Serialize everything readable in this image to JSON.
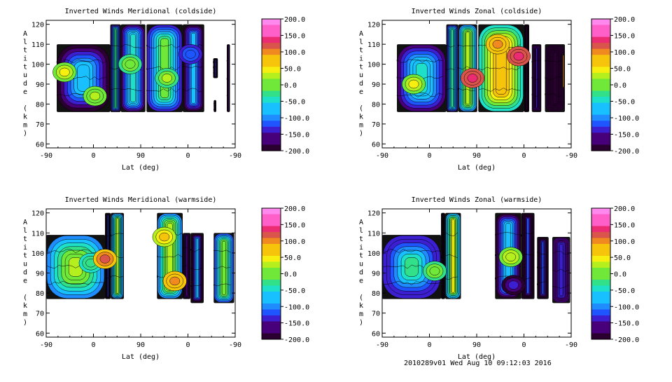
{
  "footer": "2010289v01 Wed Aug 10 09:12:03 2016",
  "colors": {
    "background": "#ffffff",
    "axis": "#000000",
    "palette": [
      "#2a0030",
      "#48007a",
      "#3b1fd0",
      "#1f55ff",
      "#1f8cff",
      "#19c0ff",
      "#1ee0c8",
      "#33e08a",
      "#6fe83a",
      "#b5ef1e",
      "#f6ef0f",
      "#f7c40c",
      "#f08a20",
      "#d9544a",
      "#ec2c72",
      "#ff5fc8",
      "#ff88ee"
    ]
  },
  "chart_data": [
    {
      "type": "heatmap",
      "title": "Inverted Winds Meridional (coldside)",
      "xlabel": "Lat (deg)",
      "ylabel": "Altitude (km)",
      "xticks": [
        "-90",
        "0",
        "90",
        "0",
        "-90"
      ],
      "yticks": [
        "60",
        "70",
        "80",
        "90",
        "100",
        "110",
        "120"
      ],
      "ylim": [
        58,
        122
      ],
      "colorbar": {
        "min": -200,
        "max": 200,
        "ticks": [
          "200.0",
          "150.0",
          "100.0",
          "50.0",
          "0.0",
          "-50.0",
          "-100.0",
          "-150.0",
          "-200.0"
        ]
      },
      "blocks": [
        {
          "x": [
            -70,
            32
          ],
          "y": [
            76,
            110
          ],
          "base": -60
        },
        {
          "x": [
            32,
            52
          ],
          "y": [
            76,
            120
          ],
          "base": -30
        },
        {
          "x": [
            52,
            99
          ],
          "y": [
            76,
            120
          ],
          "base": -40
        },
        {
          "x": [
            101,
            170
          ],
          "y": [
            76,
            120
          ],
          "base": -10
        },
        {
          "x": [
            170,
            211
          ],
          "y": [
            76,
            120
          ],
          "base": -70
        },
        {
          "x": [
            228,
            237
          ],
          "y": [
            93,
            103
          ],
          "base": -110
        },
        {
          "x": [
            229,
            234
          ],
          "y": [
            76,
            82
          ],
          "base": -170
        },
        {
          "x": [
            254,
            260
          ],
          "y": [
            76,
            110
          ],
          "base": -150
        }
      ],
      "features": [
        {
          "x": -55,
          "y": 96,
          "value": 40
        },
        {
          "x": 3,
          "y": 84,
          "value": 25
        },
        {
          "x": 70,
          "y": 100,
          "value": 10
        },
        {
          "x": 140,
          "y": 93,
          "value": 15
        },
        {
          "x": 185,
          "y": 105,
          "value": -110
        }
      ]
    },
    {
      "type": "heatmap",
      "title": "Inverted Winds Zonal (coldside)",
      "xlabel": "Lat (deg)",
      "ylabel": "Altitude (km)",
      "xticks": [
        "-90",
        "0",
        "90",
        "0",
        "-90"
      ],
      "yticks": [
        "60",
        "70",
        "80",
        "90",
        "100",
        "110",
        "120"
      ],
      "ylim": [
        58,
        122
      ],
      "colorbar": {
        "min": -200,
        "max": 200,
        "ticks": [
          "200.0",
          "150.0",
          "100.0",
          "50.0",
          "0.0",
          "-50.0",
          "-100.0",
          "-150.0",
          "-200.0"
        ]
      },
      "blocks": [
        {
          "x": [
            -62,
            32
          ],
          "y": [
            76,
            110
          ],
          "base": -40
        },
        {
          "x": [
            32,
            55
          ],
          "y": [
            76,
            120
          ],
          "base": -20
        },
        {
          "x": [
            55,
            91
          ],
          "y": [
            76,
            120
          ],
          "base": 30
        },
        {
          "x": [
            93,
            180
          ],
          "y": [
            76,
            120
          ],
          "base": 80
        },
        {
          "x": [
            180,
            190
          ],
          "y": [
            76,
            120
          ],
          "base": -185
        },
        {
          "x": [
            195,
            213
          ],
          "y": [
            76,
            110
          ],
          "base": -150
        },
        {
          "x": [
            220,
            258
          ],
          "y": [
            76,
            110
          ],
          "base": -180
        },
        {
          "x": [
            252,
            258
          ],
          "y": [
            88,
            105
          ],
          "base": 170
        }
      ],
      "features": [
        {
          "x": -30,
          "y": 90,
          "value": 40
        },
        {
          "x": 82,
          "y": 93,
          "value": 140
        },
        {
          "x": 170,
          "y": 104,
          "value": 140
        },
        {
          "x": 130,
          "y": 110,
          "value": 90
        }
      ]
    },
    {
      "type": "heatmap",
      "title": "Inverted Winds Meridional (warmside)",
      "xlabel": "Lat (deg)",
      "ylabel": "Altitude (km)",
      "xticks": [
        "-90",
        "0",
        "90",
        "0",
        "-90"
      ],
      "yticks": [
        "60",
        "70",
        "80",
        "90",
        "100",
        "110",
        "120"
      ],
      "ylim": [
        58,
        122
      ],
      "colorbar": {
        "min": -200,
        "max": 200,
        "ticks": [
          "200.0",
          "150.0",
          "100.0",
          "50.0",
          "0.0",
          "-50.0",
          "-100.0",
          "-150.0",
          "-200.0"
        ]
      },
      "blocks": [
        {
          "x": [
            -90,
            22
          ],
          "y": [
            77,
            109
          ],
          "base": 30
        },
        {
          "x": [
            22,
            33
          ],
          "y": [
            77,
            120
          ],
          "base": -100
        },
        {
          "x": [
            33,
            58
          ],
          "y": [
            77,
            120
          ],
          "base": 20
        },
        {
          "x": [
            121,
            170
          ],
          "y": [
            77,
            120
          ],
          "base": 30
        },
        {
          "x": [
            170,
            185
          ],
          "y": [
            77,
            110
          ],
          "base": -150
        },
        {
          "x": [
            185,
            210
          ],
          "y": [
            75,
            110
          ],
          "base": -80
        },
        {
          "x": [
            229,
            268
          ],
          "y": [
            75,
            110
          ],
          "base": 10
        }
      ],
      "features": [
        {
          "x": -5,
          "y": 95,
          "value": -20
        },
        {
          "x": 22,
          "y": 97,
          "value": 110
        },
        {
          "x": 155,
          "y": 86,
          "value": 90
        },
        {
          "x": 135,
          "y": 108,
          "value": 60
        }
      ]
    },
    {
      "type": "heatmap",
      "title": "Inverted Winds Zonal (warmside)",
      "xlabel": "Lat (deg)",
      "ylabel": "Altitude (km)",
      "xticks": [
        "-90",
        "0",
        "90",
        "0",
        "-90"
      ],
      "yticks": [
        "60",
        "70",
        "80",
        "90",
        "100",
        "110",
        "120"
      ],
      "ylim": [
        58,
        122
      ],
      "colorbar": {
        "min": -200,
        "max": 200,
        "ticks": [
          "200.0",
          "150.0",
          "100.0",
          "50.0",
          "0.0",
          "-50.0",
          "-100.0",
          "-150.0",
          "-200.0"
        ]
      },
      "blocks": [
        {
          "x": [
            -90,
            22
          ],
          "y": [
            77,
            109
          ],
          "base": -30
        },
        {
          "x": [
            22,
            30
          ],
          "y": [
            77,
            120
          ],
          "base": -180
        },
        {
          "x": [
            30,
            60
          ],
          "y": [
            77,
            120
          ],
          "base": 40
        },
        {
          "x": [
            125,
            175
          ],
          "y": [
            77,
            120
          ],
          "base": -60
        },
        {
          "x": [
            175,
            200
          ],
          "y": [
            77,
            120
          ],
          "base": -120
        },
        {
          "x": [
            205,
            227
          ],
          "y": [
            77,
            108
          ],
          "base": -110
        },
        {
          "x": [
            234,
            268
          ],
          "y": [
            75,
            108
          ],
          "base": -140
        }
      ],
      "features": [
        {
          "x": 10,
          "y": 91,
          "value": 10
        },
        {
          "x": 155,
          "y": 98,
          "value": 30
        },
        {
          "x": 160,
          "y": 84,
          "value": -150
        }
      ]
    }
  ]
}
